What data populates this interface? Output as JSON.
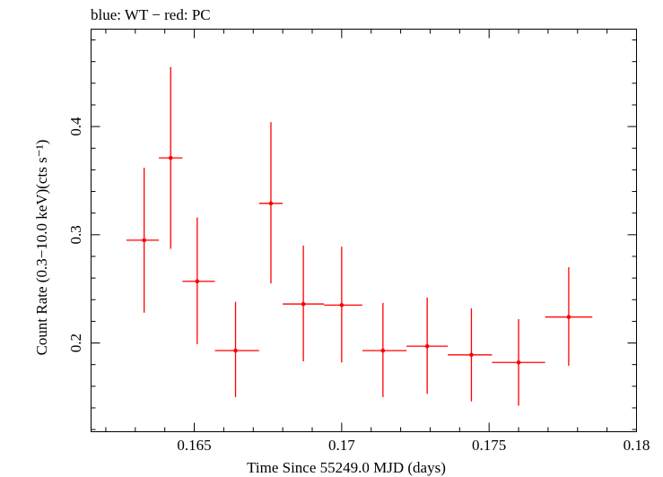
{
  "chart_data": {
    "type": "scatter",
    "title": "blue: WT − red: PC",
    "xlabel": "Time Since 55249.0 MJD (days)",
    "ylabel": "Count Rate (0.3−10.0 keV)(cts s⁻¹)",
    "xlim": [
      0.1615,
      0.18
    ],
    "ylim": [
      0.118,
      0.49
    ],
    "x_ticks": [
      0.165,
      0.17,
      0.175,
      0.18
    ],
    "x_tick_labels": [
      "0.165",
      "0.17",
      "0.175",
      "0.18"
    ],
    "y_ticks": [
      0.2,
      0.3,
      0.4
    ],
    "y_tick_labels": [
      "0.2",
      "0.3",
      "0.4"
    ],
    "series": [
      {
        "name": "PC",
        "color": "#ff0000",
        "points": [
          {
            "x": 0.1633,
            "y": 0.295,
            "xlo": 0.1627,
            "xhi": 0.1638,
            "ylo": 0.228,
            "yhi": 0.362
          },
          {
            "x": 0.1642,
            "y": 0.371,
            "xlo": 0.1638,
            "xhi": 0.1646,
            "ylo": 0.287,
            "yhi": 0.455
          },
          {
            "x": 0.1651,
            "y": 0.257,
            "xlo": 0.1646,
            "xhi": 0.1657,
            "ylo": 0.199,
            "yhi": 0.316
          },
          {
            "x": 0.1664,
            "y": 0.193,
            "xlo": 0.1657,
            "xhi": 0.1672,
            "ylo": 0.15,
            "yhi": 0.238
          },
          {
            "x": 0.1676,
            "y": 0.329,
            "xlo": 0.1672,
            "xhi": 0.168,
            "ylo": 0.255,
            "yhi": 0.404
          },
          {
            "x": 0.1687,
            "y": 0.236,
            "xlo": 0.168,
            "xhi": 0.1694,
            "ylo": 0.183,
            "yhi": 0.29
          },
          {
            "x": 0.17,
            "y": 0.235,
            "xlo": 0.1694,
            "xhi": 0.1707,
            "ylo": 0.182,
            "yhi": 0.289
          },
          {
            "x": 0.1714,
            "y": 0.193,
            "xlo": 0.1707,
            "xhi": 0.1722,
            "ylo": 0.15,
            "yhi": 0.237
          },
          {
            "x": 0.1729,
            "y": 0.197,
            "xlo": 0.1722,
            "xhi": 0.1736,
            "ylo": 0.153,
            "yhi": 0.242
          },
          {
            "x": 0.1744,
            "y": 0.189,
            "xlo": 0.1736,
            "xhi": 0.1751,
            "ylo": 0.146,
            "yhi": 0.232
          },
          {
            "x": 0.176,
            "y": 0.182,
            "xlo": 0.1751,
            "xhi": 0.1769,
            "ylo": 0.142,
            "yhi": 0.222
          },
          {
            "x": 0.1777,
            "y": 0.224,
            "xlo": 0.1769,
            "xhi": 0.1785,
            "ylo": 0.179,
            "yhi": 0.27
          }
        ]
      }
    ]
  }
}
